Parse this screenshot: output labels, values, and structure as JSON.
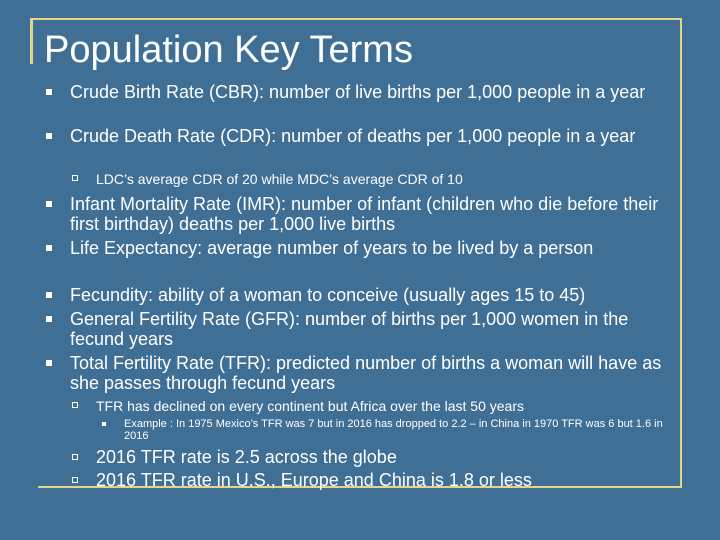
{
  "slide": {
    "title": "Population Key Terms",
    "items": [
      {
        "text": "Crude Birth Rate (CBR): number of live births per 1,000 people in a year"
      },
      {
        "text": "Crude Death Rate (CDR): number of deaths per 1,000 people in a year"
      },
      {
        "text": "LDC’s average CDR of 20 while MDC’s average CDR of 10"
      },
      {
        "text": "Infant Mortality Rate (IMR): number of infant (children who die before their first birthday) deaths per 1,000 live births"
      },
      {
        "text": "Life Expectancy:  average number of years to be lived by a person"
      },
      {
        "text": "Fecundity: ability of a woman to conceive (usually ages 15 to 45)"
      },
      {
        "text": "General Fertility Rate (GFR): number of births per 1,000 women in the fecund years"
      },
      {
        "text": "Total Fertility Rate (TFR): predicted number of births a woman will have as she passes through fecund years"
      },
      {
        "text": "TFR has declined on every continent but Africa over the last 50 years"
      },
      {
        "text": "Example : In 1975 Mexico’s  TFR was 7 but in 2016 has dropped to 2.2 – in China in 1970 TFR was 6 but 1.6 in 2016"
      },
      {
        "text": "2016 TFR rate is 2.5 across the globe"
      },
      {
        "text": "2016 TFR rate in U.S., Europe and China is 1.8 or less"
      }
    ]
  },
  "colors": {
    "background": "#3f6f95",
    "frame": "#e6d48a",
    "text": "#ffffff"
  }
}
